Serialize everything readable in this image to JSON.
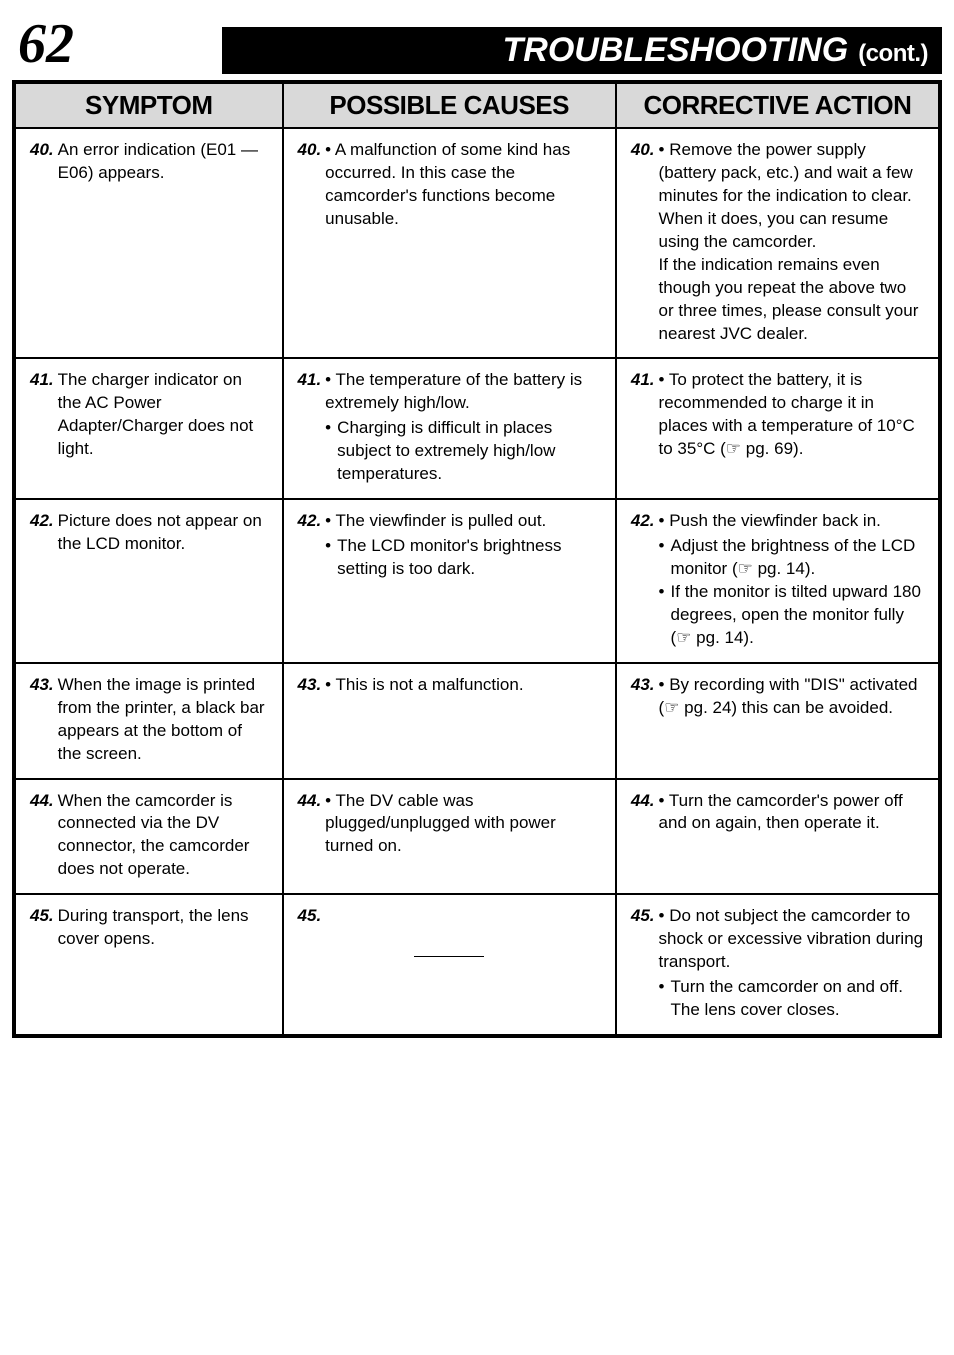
{
  "page_number": "62",
  "header_title": "TROUBLESHOOTING",
  "header_cont": "(cont.)",
  "columns": {
    "symptom": "SYMPTOM",
    "causes": "POSSIBLE CAUSES",
    "action": "CORRECTIVE ACTION"
  },
  "rows": [
    {
      "s_num": "40.",
      "s_txt": "An error indication (E01 — E06) appears.",
      "c_num": "40.",
      "c_first": "A malfunction of some kind has occurred. In this case the camcorder's functions become unusable.",
      "c_more": [],
      "a_num": "40.",
      "a_first": "Remove the power supply (battery pack, etc.) and wait a few minutes for the indication to clear. When it does, you can resume using the camcorder.\nIf the indication remains even though you repeat the above two or three times, please consult your nearest JVC dealer.",
      "a_more": []
    },
    {
      "s_num": "41.",
      "s_txt": "The charger indicator on the AC Power Adapter/Charger does not light.",
      "c_num": "41.",
      "c_first": "The temperature of the battery is extremely high/low.",
      "c_more": [
        "Charging is difficult in places subject to extremely high/low temperatures."
      ],
      "a_num": "41.",
      "a_first": "To protect the battery, it is recommended to charge it in places with a temperature of 10°C to 35°C (☞ pg. 69).",
      "a_more": []
    },
    {
      "s_num": "42.",
      "s_txt": "Picture does not appear on the LCD monitor.",
      "c_num": "42.",
      "c_first": "The viewfinder is pulled out.",
      "c_more": [
        "The LCD monitor's brightness setting is too dark."
      ],
      "a_num": "42.",
      "a_first": "Push the viewfinder back in.",
      "a_more": [
        "Adjust the brightness of the LCD monitor (☞ pg. 14).",
        "If the monitor is tilted upward 180 degrees, open the monitor fully (☞ pg. 14)."
      ]
    },
    {
      "s_num": "43.",
      "s_txt": "When the image is printed from the printer, a black bar appears at the bottom of the screen.",
      "c_num": "43.",
      "c_first": "This is not a malfunction.",
      "c_more": [],
      "a_num": "43.",
      "a_first": "By recording with \"DIS\" activated (☞ pg. 24) this can be avoided.",
      "a_more": []
    },
    {
      "s_num": "44.",
      "s_txt": "When the camcorder is connected via the DV connector, the camcorder does not operate.",
      "c_num": "44.",
      "c_first": "The DV cable was plugged/unplugged with power turned on.",
      "c_more": [],
      "a_num": "44.",
      "a_first": "Turn the camcorder's power off and on again, then operate it.",
      "a_more": []
    },
    {
      "s_num": "45.",
      "s_txt": "During transport, the lens cover opens.",
      "c_num": "45.",
      "c_first": "",
      "c_more": [],
      "a_num": "45.",
      "a_first": "Do not subject the camcorder to shock or excessive vibration during transport.",
      "a_more": [
        "Turn the camcorder on and off. The lens cover closes."
      ]
    }
  ]
}
